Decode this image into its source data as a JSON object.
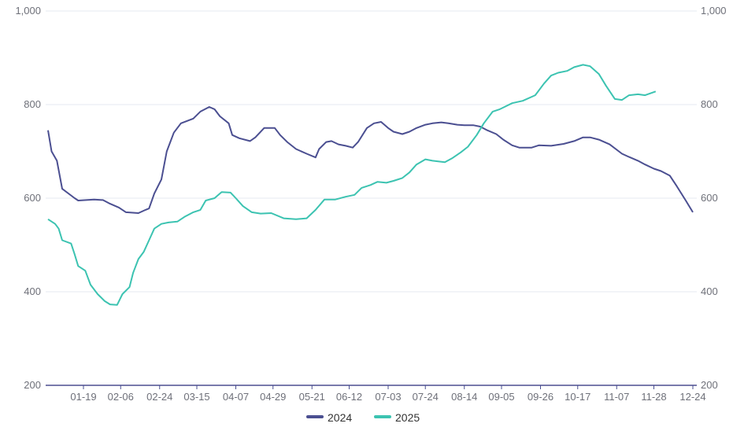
{
  "chart_data": {
    "type": "line",
    "title": "",
    "xlabel": "",
    "ylabel": "",
    "ylim": [
      200,
      1000
    ],
    "yticks": [
      "200",
      "400",
      "600",
      "800",
      "1,000"
    ],
    "ytick_values": [
      200,
      400,
      600,
      800,
      1000
    ],
    "grid": true,
    "legend_position": "bottom-center",
    "x_range": [
      0,
      364
    ],
    "xtick_labels": [
      {
        "label": "01-19",
        "x": 20
      },
      {
        "label": "02-06",
        "x": 41
      },
      {
        "label": "02-24",
        "x": 63
      },
      {
        "label": "03-15",
        "x": 84
      },
      {
        "label": "04-07",
        "x": 106
      },
      {
        "label": "04-29",
        "x": 127
      },
      {
        "label": "05-21",
        "x": 149
      },
      {
        "label": "06-12",
        "x": 170
      },
      {
        "label": "07-03",
        "x": 192
      },
      {
        "label": "07-24",
        "x": 213
      },
      {
        "label": "08-14",
        "x": 235
      },
      {
        "label": "09-05",
        "x": 256
      },
      {
        "label": "09-26",
        "x": 278
      },
      {
        "label": "10-17",
        "x": 299
      },
      {
        "label": "11-07",
        "x": 321
      },
      {
        "label": "11-28",
        "x": 342
      },
      {
        "label": "12-24",
        "x": 364
      }
    ],
    "series": [
      {
        "name": "2024",
        "color": "#4b4f91",
        "points": [
          [
            0,
            745
          ],
          [
            2,
            700
          ],
          [
            5,
            680
          ],
          [
            8,
            620
          ],
          [
            15,
            600
          ],
          [
            17,
            595
          ],
          [
            26,
            597
          ],
          [
            31,
            596
          ],
          [
            35,
            588
          ],
          [
            40,
            580
          ],
          [
            44,
            570
          ],
          [
            51,
            568
          ],
          [
            55,
            575
          ],
          [
            57,
            578
          ],
          [
            60,
            610
          ],
          [
            64,
            640
          ],
          [
            67,
            700
          ],
          [
            71,
            740
          ],
          [
            75,
            760
          ],
          [
            82,
            770
          ],
          [
            86,
            785
          ],
          [
            91,
            795
          ],
          [
            94,
            790
          ],
          [
            97,
            775
          ],
          [
            102,
            760
          ],
          [
            104,
            735
          ],
          [
            108,
            728
          ],
          [
            114,
            722
          ],
          [
            117,
            730
          ],
          [
            122,
            750
          ],
          [
            128,
            750
          ],
          [
            131,
            735
          ],
          [
            135,
            720
          ],
          [
            140,
            705
          ],
          [
            146,
            695
          ],
          [
            151,
            687
          ],
          [
            153,
            705
          ],
          [
            157,
            720
          ],
          [
            160,
            722
          ],
          [
            164,
            715
          ],
          [
            168,
            712
          ],
          [
            172,
            708
          ],
          [
            175,
            720
          ],
          [
            180,
            750
          ],
          [
            184,
            760
          ],
          [
            188,
            763
          ],
          [
            192,
            750
          ],
          [
            195,
            742
          ],
          [
            200,
            737
          ],
          [
            204,
            742
          ],
          [
            208,
            750
          ],
          [
            213,
            757
          ],
          [
            217,
            760
          ],
          [
            222,
            762
          ],
          [
            226,
            760
          ],
          [
            231,
            757
          ],
          [
            235,
            756
          ],
          [
            240,
            756
          ],
          [
            244,
            753
          ],
          [
            248,
            745
          ],
          [
            253,
            737
          ],
          [
            257,
            725
          ],
          [
            262,
            713
          ],
          [
            266,
            708
          ],
          [
            273,
            708
          ],
          [
            277,
            713
          ],
          [
            284,
            712
          ],
          [
            291,
            716
          ],
          [
            297,
            722
          ],
          [
            302,
            730
          ],
          [
            306,
            730
          ],
          [
            311,
            725
          ],
          [
            317,
            715
          ],
          [
            324,
            695
          ],
          [
            328,
            688
          ],
          [
            333,
            680
          ],
          [
            337,
            672
          ],
          [
            342,
            663
          ],
          [
            346,
            658
          ],
          [
            351,
            648
          ],
          [
            355,
            625
          ],
          [
            360,
            595
          ],
          [
            364,
            570
          ]
        ]
      },
      {
        "name": "2025",
        "color": "#3cc3b1",
        "points": [
          [
            0,
            555
          ],
          [
            4,
            545
          ],
          [
            6,
            535
          ],
          [
            8,
            510
          ],
          [
            13,
            503
          ],
          [
            15,
            480
          ],
          [
            17,
            455
          ],
          [
            21,
            445
          ],
          [
            24,
            415
          ],
          [
            28,
            395
          ],
          [
            32,
            380
          ],
          [
            35,
            373
          ],
          [
            39,
            372
          ],
          [
            42,
            395
          ],
          [
            46,
            410
          ],
          [
            48,
            440
          ],
          [
            51,
            470
          ],
          [
            54,
            485
          ],
          [
            57,
            510
          ],
          [
            60,
            535
          ],
          [
            64,
            545
          ],
          [
            68,
            548
          ],
          [
            73,
            550
          ],
          [
            77,
            560
          ],
          [
            82,
            570
          ],
          [
            86,
            575
          ],
          [
            89,
            595
          ],
          [
            94,
            600
          ],
          [
            98,
            613
          ],
          [
            103,
            612
          ],
          [
            106,
            600
          ],
          [
            110,
            583
          ],
          [
            115,
            570
          ],
          [
            120,
            567
          ],
          [
            126,
            568
          ],
          [
            133,
            557
          ],
          [
            140,
            555
          ],
          [
            146,
            557
          ],
          [
            151,
            575
          ],
          [
            156,
            597
          ],
          [
            162,
            597
          ],
          [
            168,
            603
          ],
          [
            173,
            607
          ],
          [
            177,
            622
          ],
          [
            182,
            628
          ],
          [
            186,
            635
          ],
          [
            191,
            633
          ],
          [
            195,
            637
          ],
          [
            200,
            643
          ],
          [
            204,
            655
          ],
          [
            208,
            672
          ],
          [
            213,
            683
          ],
          [
            217,
            680
          ],
          [
            224,
            677
          ],
          [
            228,
            685
          ],
          [
            233,
            698
          ],
          [
            237,
            710
          ],
          [
            242,
            735
          ],
          [
            246,
            760
          ],
          [
            251,
            785
          ],
          [
            255,
            790
          ],
          [
            262,
            803
          ],
          [
            268,
            808
          ],
          [
            275,
            820
          ],
          [
            280,
            845
          ],
          [
            284,
            862
          ],
          [
            288,
            868
          ],
          [
            293,
            872
          ],
          [
            297,
            880
          ],
          [
            302,
            885
          ],
          [
            306,
            882
          ],
          [
            311,
            865
          ],
          [
            315,
            840
          ],
          [
            320,
            812
          ],
          [
            324,
            810
          ],
          [
            328,
            820
          ],
          [
            333,
            822
          ],
          [
            337,
            820
          ],
          [
            343,
            828
          ]
        ]
      }
    ]
  }
}
